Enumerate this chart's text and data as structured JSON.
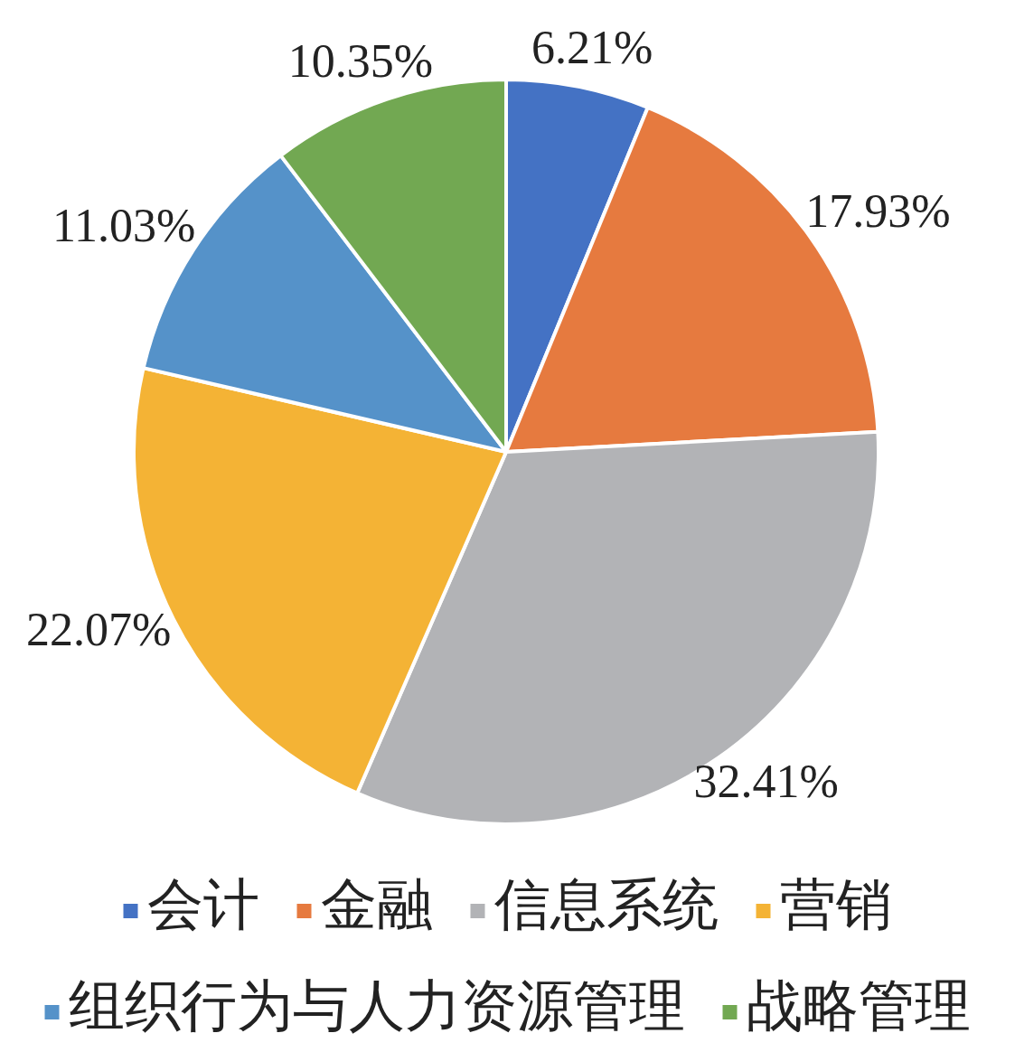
{
  "chart_data": {
    "type": "pie",
    "categories": [
      "会计",
      "金融",
      "信息系统",
      "营销",
      "组织行为与人力资源管理",
      "战略管理"
    ],
    "values": [
      6.21,
      17.93,
      32.41,
      22.07,
      11.03,
      10.35
    ],
    "value_labels": [
      "6.21%",
      "17.93%",
      "32.41%",
      "22.07%",
      "11.03%",
      "10.35%"
    ],
    "colors": [
      "#4472c4",
      "#e67a3f",
      "#b2b3b6",
      "#f4b335",
      "#5592c9",
      "#72a852"
    ],
    "legend": "bottom"
  }
}
